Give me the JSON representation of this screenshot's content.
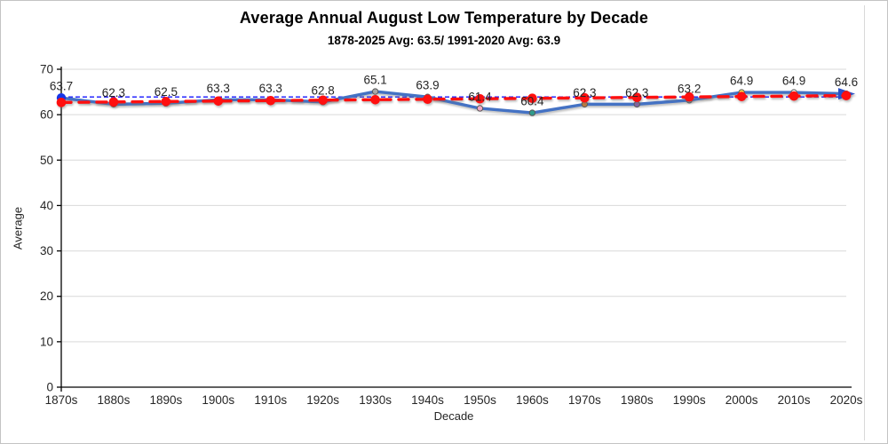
{
  "header": {
    "title": "Average Annual August Low Temperature by Decade",
    "subtitle": "1878-2025 Avg: 63.5/ 1991-2020 Avg: 63.9"
  },
  "chart_data": {
    "type": "line",
    "title": "Average Annual August Low Temperature by Decade",
    "subtitle": "1878-2025 Avg: 63.5/ 1991-2020 Avg: 63.9",
    "xlabel": "Decade",
    "ylabel": "Average",
    "ylim": [
      0,
      70
    ],
    "yticks": [
      0,
      10,
      20,
      30,
      40,
      50,
      60,
      70
    ],
    "grid": true,
    "legend_position": "none",
    "categories": [
      "1870s",
      "1880s",
      "1890s",
      "1900s",
      "1910s",
      "1920s",
      "1930s",
      "1940s",
      "1950s",
      "1960s",
      "1970s",
      "1980s",
      "1990s",
      "2000s",
      "2010s",
      "2020s"
    ],
    "series": [
      {
        "name": "Average annual August low temperature",
        "type": "line",
        "color": "#4472C4",
        "values": [
          63.7,
          62.3,
          62.5,
          63.3,
          63.3,
          62.8,
          65.1,
          63.9,
          61.4,
          60.4,
          62.3,
          62.3,
          63.2,
          64.9,
          64.9,
          64.6
        ],
        "marker_colors": [
          "#1535E8",
          "#2E9B3E",
          "#8A5ACF",
          "#E8A33D",
          "#C0504D",
          "#9BBB59",
          "#A8A8A8",
          "#62C6E8",
          "#F2A9C4",
          "#2E9B8B",
          "#C07A3A",
          "#8064A2",
          "#4BACC6",
          "#F5E04B",
          "#F2F2F2",
          "#1A1A1A"
        ],
        "end_arrow": true,
        "data_labels_visible": true
      },
      {
        "name": "Linear trend",
        "type": "trendline",
        "line_style": "dashed",
        "color": "#FF0F0F",
        "start_value": 62.7,
        "end_value": 64.2,
        "marker_color": "#FF0F0F"
      }
    ],
    "reference_line": {
      "name": "1991-2020 average",
      "value": 63.9,
      "color": "#1414FF",
      "line_style": "dashed"
    },
    "colors": {
      "gridline": "#D9D9D9",
      "axis": "#000000",
      "tick_label": "#262626",
      "data_label": "#262626"
    }
  }
}
